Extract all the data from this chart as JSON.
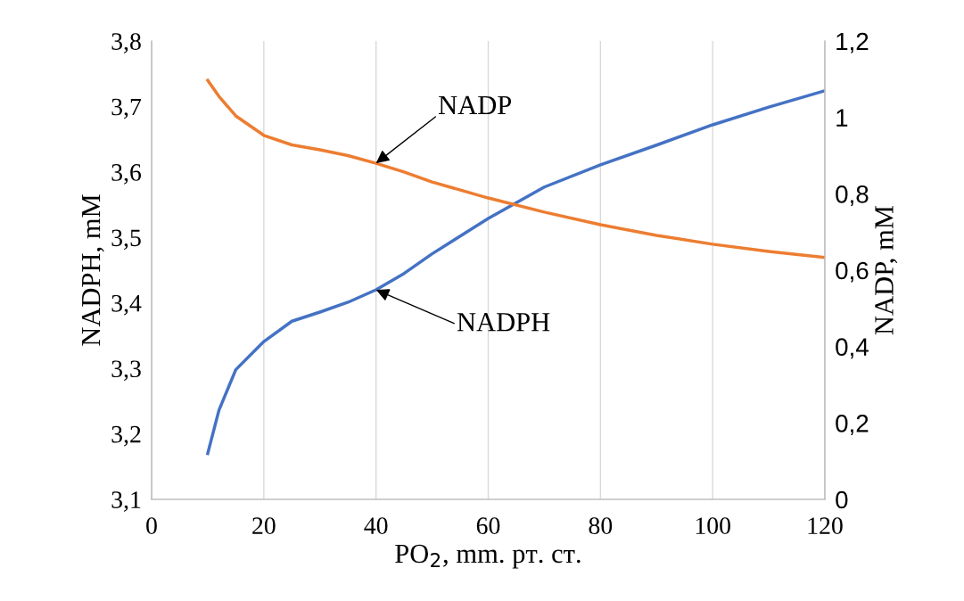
{
  "chart_data": {
    "type": "line",
    "xlabel": "PO$_{2}$, mm. рт. ст.",
    "ylabel": "NADPH, mM",
    "y2label": "NADP, mM",
    "series": [
      {
        "name": "NADPH",
        "color": "#4472c4",
        "x": [
          10,
          12,
          15,
          20,
          25,
          30,
          35,
          40,
          45,
          50,
          60,
          70,
          80,
          90,
          100,
          110,
          120
        ],
        "values": [
          3.17,
          3.236,
          3.298,
          3.341,
          3.372,
          3.386,
          3.401,
          3.42,
          3.445,
          3.475,
          3.529,
          3.577,
          3.611,
          3.641,
          3.672,
          3.699,
          3.724
        ]
      },
      {
        "name": "NADP",
        "color": "#ed7d31",
        "axis": "y2",
        "x": [
          10,
          12,
          15,
          20,
          25,
          30,
          35,
          40,
          45,
          50,
          60,
          70,
          80,
          90,
          100,
          110,
          120
        ],
        "values": [
          1.097,
          1.055,
          1.004,
          0.953,
          0.928,
          0.915,
          0.9,
          0.88,
          0.857,
          0.831,
          0.789,
          0.752,
          0.719,
          0.691,
          0.668,
          0.649,
          0.633
        ]
      }
    ],
    "xlim": [
      0,
      120
    ],
    "xticks": [
      0,
      20,
      40,
      60,
      80,
      100,
      120
    ],
    "ylim": [
      3.1,
      3.8
    ],
    "yticks": [
      {
        "value": 3.1,
        "label": "3,1"
      },
      {
        "value": 3.2,
        "label": "3,2"
      },
      {
        "value": 3.3,
        "label": "3,3"
      },
      {
        "value": 3.4,
        "label": "3,4"
      },
      {
        "value": 3.5,
        "label": "3,5"
      },
      {
        "value": 3.6,
        "label": "3,6"
      },
      {
        "value": 3.7,
        "label": "3,7"
      },
      {
        "value": 3.8,
        "label": "3,8"
      }
    ],
    "y2lim": [
      0,
      1.2
    ],
    "y2ticks": [
      0,
      {
        "value": 0.2,
        "label": "0,2"
      },
      {
        "value": 0.4,
        "label": "0,4"
      },
      {
        "value": 0.6,
        "label": "0,6"
      },
      {
        "value": 0.8,
        "label": "0,8"
      },
      1,
      {
        "value": 1.2,
        "label": "1,2"
      }
    ],
    "grid": "x",
    "legend": false,
    "marker": "none",
    "line_style": "solid"
  }
}
